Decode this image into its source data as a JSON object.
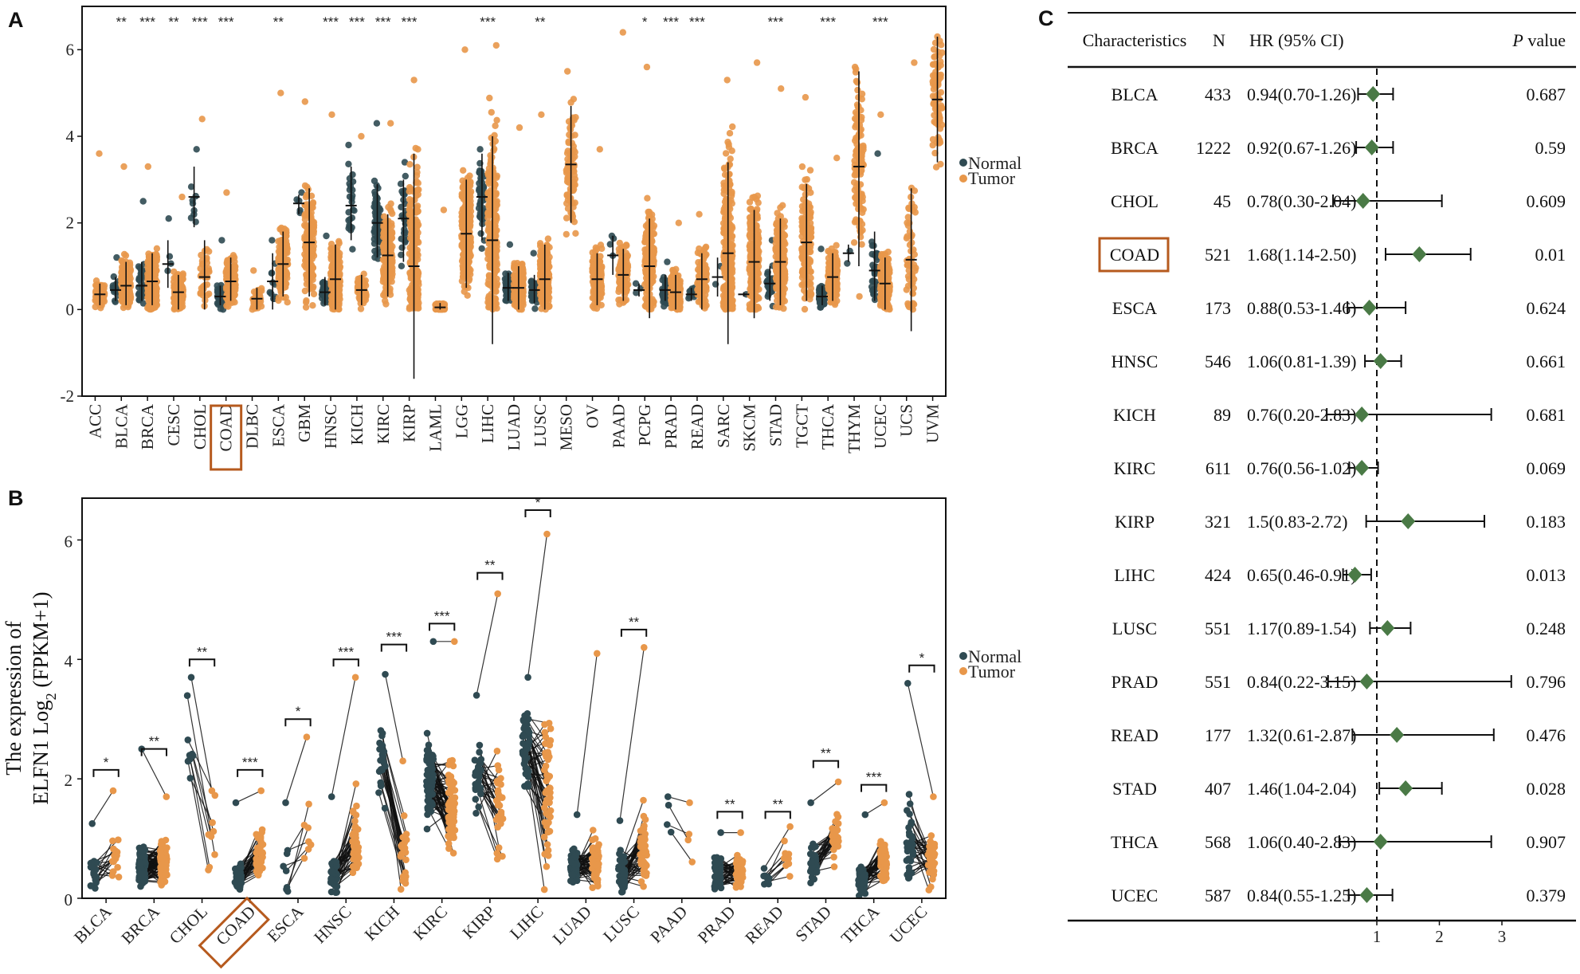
{
  "colors": {
    "normal": "#2f4a52",
    "tumor": "#e8974a",
    "highlight": "#b65a1e",
    "diamond": "#4a7a46",
    "frame": "#111111"
  },
  "chart_data": [
    {
      "panel": "A",
      "type": "scatter",
      "subtype": "strip-with-mean-sd",
      "ylim": [
        -2,
        7
      ],
      "yticks": [
        -2,
        0,
        2,
        4,
        6
      ],
      "legend": [
        "Normal",
        "Tumor"
      ],
      "legend_position": "right",
      "highlight_category": "COAD",
      "categories": [
        "ACC",
        "BLCA",
        "BRCA",
        "CESC",
        "CHOL",
        "COAD",
        "DLBC",
        "ESCA",
        "GBM",
        "HNSC",
        "KICH",
        "KIRC",
        "KIRP",
        "LAML",
        "LGG",
        "LIHC",
        "LUAD",
        "LUSC",
        "MESO",
        "OV",
        "PAAD",
        "PCPG",
        "PRAD",
        "READ",
        "SARC",
        "SKCM",
        "STAD",
        "TGCT",
        "THCA",
        "THYM",
        "UCEC",
        "UCS",
        "UVM"
      ],
      "significance": [
        "",
        "**",
        "***",
        "**",
        "***",
        "***",
        "",
        "**",
        "",
        "***",
        "***",
        "***",
        "***",
        "",
        "",
        "***",
        "",
        "**",
        "",
        "",
        "",
        "*",
        "***",
        "***",
        "",
        "",
        "***",
        "",
        "***",
        "",
        "***",
        "",
        ""
      ],
      "normal": [
        null,
        {
          "mean": 0.45,
          "sd_low": 0.2,
          "sd_high": 0.75,
          "n": 20,
          "max": 1.2
        },
        {
          "mean": 0.55,
          "sd_low": 0.2,
          "sd_high": 1.1,
          "n": 40,
          "max": 2.5
        },
        {
          "mean": 1.05,
          "sd_low": 0.5,
          "sd_high": 1.6,
          "n": 4,
          "max": 2.1
        },
        {
          "mean": 2.6,
          "sd_low": 1.9,
          "sd_high": 3.3,
          "n": 9,
          "max": 3.7
        },
        {
          "mean": 0.3,
          "sd_low": 0.1,
          "sd_high": 0.55,
          "n": 40,
          "max": 1.6
        },
        null,
        {
          "mean": 0.65,
          "sd_low": 0.0,
          "sd_high": 1.3,
          "n": 11,
          "max": 1.6
        },
        {
          "mean": 2.45,
          "sd_low": 2.2,
          "sd_high": 2.65,
          "n": 5,
          "max": 2.7
        },
        {
          "mean": 0.4,
          "sd_low": 0.1,
          "sd_high": 0.75,
          "n": 44,
          "max": 1.7
        },
        {
          "mean": 2.4,
          "sd_low": 1.6,
          "sd_high": 3.3,
          "n": 25,
          "max": 3.8
        },
        {
          "mean": 2.0,
          "sd_low": 1.2,
          "sd_high": 2.9,
          "n": 72,
          "max": 4.3
        },
        {
          "mean": 2.1,
          "sd_low": 1.1,
          "sd_high": 3.0,
          "n": 32,
          "max": 3.4
        },
        null,
        null,
        {
          "mean": 2.6,
          "sd_low": 1.6,
          "sd_high": 3.6,
          "n": 50,
          "max": 3.7
        },
        {
          "mean": 0.5,
          "sd_low": 0.2,
          "sd_high": 0.85,
          "n": 59,
          "max": 1.5
        },
        {
          "mean": 0.45,
          "sd_low": 0.15,
          "sd_high": 0.8,
          "n": 49,
          "max": 1.3
        },
        null,
        null,
        {
          "mean": 1.25,
          "sd_low": 0.8,
          "sd_high": 1.7,
          "n": 4,
          "max": 1.7
        },
        {
          "mean": 0.45,
          "sd_low": 0.3,
          "sd_high": 0.6,
          "n": 3,
          "max": 0.6
        },
        {
          "mean": 0.45,
          "sd_low": 0.2,
          "sd_high": 0.8,
          "n": 52,
          "max": 1.1
        },
        {
          "mean": 0.35,
          "sd_low": 0.2,
          "sd_high": 0.5,
          "n": 10,
          "max": 0.5
        },
        {
          "mean": 0.75,
          "sd_low": 0.3,
          "sd_high": 1.2,
          "n": 2,
          "max": 1.0
        },
        {
          "mean": 0.35,
          "sd_low": 0.3,
          "sd_high": 0.4,
          "n": 1,
          "max": 0.35
        },
        {
          "mean": 0.6,
          "sd_low": 0.2,
          "sd_high": 1.0,
          "n": 32,
          "max": 1.6
        },
        null,
        {
          "mean": 0.3,
          "sd_low": 0.1,
          "sd_high": 0.55,
          "n": 58,
          "max": 1.4
        },
        {
          "mean": 1.3,
          "sd_low": 1.1,
          "sd_high": 1.5,
          "n": 2,
          "max": 1.35
        },
        {
          "mean": 0.9,
          "sd_low": 0.2,
          "sd_high": 1.8,
          "n": 35,
          "max": 3.6
        },
        null,
        null
      ],
      "tumor": [
        {
          "mean": 0.35,
          "sd_low": 0.1,
          "sd_high": 0.6,
          "n": 79,
          "max": 3.6
        },
        {
          "mean": 0.55,
          "sd_low": 0.1,
          "sd_high": 1.1,
          "n": 200,
          "max": 3.3
        },
        {
          "mean": 0.65,
          "sd_low": 0.1,
          "sd_high": 1.3,
          "n": 250,
          "max": 3.3
        },
        {
          "mean": 0.4,
          "sd_low": 0.0,
          "sd_high": 0.8,
          "n": 150,
          "max": 2.6
        },
        {
          "mean": 0.75,
          "sd_low": 0.0,
          "sd_high": 1.6,
          "n": 36,
          "max": 4.4
        },
        {
          "mean": 0.65,
          "sd_low": 0.2,
          "sd_high": 1.2,
          "n": 150,
          "max": 2.7
        },
        {
          "mean": 0.25,
          "sd_low": 0.0,
          "sd_high": 0.5,
          "n": 48,
          "max": 0.9
        },
        {
          "mean": 1.05,
          "sd_low": 0.3,
          "sd_high": 1.8,
          "n": 150,
          "max": 5.0
        },
        {
          "mean": 1.55,
          "sd_low": 0.3,
          "sd_high": 2.8,
          "n": 160,
          "max": 4.8
        },
        {
          "mean": 0.7,
          "sd_low": 0.0,
          "sd_high": 1.5,
          "n": 200,
          "max": 4.5
        },
        {
          "mean": 0.45,
          "sd_low": 0.1,
          "sd_high": 0.8,
          "n": 65,
          "max": 4.0
        },
        {
          "mean": 1.25,
          "sd_low": 0.3,
          "sd_high": 2.2,
          "n": 200,
          "max": 4.3
        },
        {
          "mean": 1.0,
          "sd_low": -1.6,
          "sd_high": 3.6,
          "n": 220,
          "max": 5.3
        },
        {
          "mean": 0.05,
          "sd_low": 0.0,
          "sd_high": 0.15,
          "n": 150,
          "max": 2.3
        },
        {
          "mean": 1.75,
          "sd_low": 0.5,
          "sd_high": 3.0,
          "n": 250,
          "max": 6.0
        },
        {
          "mean": 1.6,
          "sd_low": -0.8,
          "sd_high": 4.0,
          "n": 250,
          "max": 6.1
        },
        {
          "mean": 0.5,
          "sd_low": 0.0,
          "sd_high": 1.0,
          "n": 220,
          "max": 4.2
        },
        {
          "mean": 0.7,
          "sd_low": 0.0,
          "sd_high": 1.5,
          "n": 220,
          "max": 4.5
        },
        {
          "mean": 3.35,
          "sd_low": 2.0,
          "sd_high": 4.7,
          "n": 87,
          "max": 5.5
        },
        {
          "mean": 0.7,
          "sd_low": 0.1,
          "sd_high": 1.3,
          "n": 200,
          "max": 3.7
        },
        {
          "mean": 0.8,
          "sd_low": 0.2,
          "sd_high": 1.4,
          "n": 120,
          "max": 6.4
        },
        {
          "mean": 1.0,
          "sd_low": -0.2,
          "sd_high": 2.1,
          "n": 180,
          "max": 5.6
        },
        {
          "mean": 0.4,
          "sd_low": 0.0,
          "sd_high": 0.8,
          "n": 250,
          "max": 2.0
        },
        {
          "mean": 0.7,
          "sd_low": 0.0,
          "sd_high": 1.3,
          "n": 120,
          "max": 2.2
        },
        {
          "mean": 1.3,
          "sd_low": -0.8,
          "sd_high": 3.4,
          "n": 250,
          "max": 5.3
        },
        {
          "mean": 1.1,
          "sd_low": -0.2,
          "sd_high": 2.3,
          "n": 250,
          "max": 5.7
        },
        {
          "mean": 1.1,
          "sd_low": 0.1,
          "sd_high": 2.1,
          "n": 220,
          "max": 5.1
        },
        {
          "mean": 1.55,
          "sd_low": 0.2,
          "sd_high": 2.9,
          "n": 150,
          "max": 4.9
        },
        {
          "mean": 0.75,
          "sd_low": 0.2,
          "sd_high": 1.3,
          "n": 250,
          "max": 3.5
        },
        {
          "mean": 3.3,
          "sd_low": 1.0,
          "sd_high": 5.5,
          "n": 120,
          "max": 5.6
        },
        {
          "mean": 0.6,
          "sd_low": 0.0,
          "sd_high": 1.2,
          "n": 200,
          "max": 4.5
        },
        {
          "mean": 1.15,
          "sd_low": -0.5,
          "sd_high": 2.8,
          "n": 57,
          "max": 5.7
        },
        {
          "mean": 4.85,
          "sd_low": 3.4,
          "sd_high": 6.3,
          "n": 80,
          "max": 6.3
        }
      ]
    },
    {
      "panel": "B",
      "type": "scatter",
      "subtype": "paired-lines",
      "ylabel_line1": "The expression of",
      "ylabel_line2": "ELFN1 Log",
      "ylabel_sub": "2",
      "ylabel_suffix": " (FPKM+1)",
      "ylim": [
        0,
        6.7
      ],
      "yticks": [
        0,
        2,
        4,
        6
      ],
      "legend": [
        "Normal",
        "Tumor"
      ],
      "legend_position": "right",
      "highlight_category": "COAD",
      "categories": [
        "BLCA",
        "BRCA",
        "CHOL",
        "COAD",
        "ESCA",
        "HNSC",
        "KICH",
        "KIRC",
        "KIRP",
        "LIHC",
        "LUAD",
        "LUSC",
        "PAAD",
        "PRAD",
        "READ",
        "STAD",
        "THCA",
        "UCEC"
      ],
      "significance": [
        "*",
        "**",
        "**",
        "***",
        "*",
        "***",
        "***",
        "***",
        "**",
        "*",
        "",
        "**",
        "",
        "**",
        "**",
        "**",
        "***",
        "*"
      ],
      "bracket_y": [
        2.15,
        2.5,
        4.0,
        2.15,
        3.0,
        4.0,
        4.25,
        4.6,
        5.45,
        6.5,
        null,
        4.5,
        null,
        1.45,
        1.45,
        2.3,
        1.9,
        3.9
      ],
      "pairs": [
        19,
        110,
        9,
        41,
        8,
        43,
        25,
        72,
        32,
        50,
        58,
        49,
        4,
        52,
        10,
        32,
        58,
        35
      ],
      "normal": [
        {
          "mean": 0.45,
          "sd": 0.25,
          "max": 1.25
        },
        {
          "mean": 0.55,
          "sd": 0.3,
          "max": 2.5
        },
        {
          "mean": 2.6,
          "sd": 0.6,
          "max": 3.7
        },
        {
          "mean": 0.35,
          "sd": 0.2,
          "max": 1.6
        },
        {
          "mean": 0.6,
          "sd": 0.5,
          "max": 1.6
        },
        {
          "mean": 0.4,
          "sd": 0.3,
          "max": 1.7
        },
        {
          "mean": 2.3,
          "sd": 0.7,
          "max": 3.75
        },
        {
          "mean": 2.0,
          "sd": 0.7,
          "max": 4.3
        },
        {
          "mean": 2.0,
          "sd": 0.7,
          "max": 3.4
        },
        {
          "mean": 2.5,
          "sd": 0.7,
          "max": 3.7
        },
        {
          "mean": 0.5,
          "sd": 0.3,
          "max": 1.4
        },
        {
          "mean": 0.45,
          "sd": 0.3,
          "max": 1.3
        },
        {
          "mean": 1.3,
          "sd": 0.4,
          "max": 1.7
        },
        {
          "mean": 0.45,
          "sd": 0.25,
          "max": 1.1
        },
        {
          "mean": 0.35,
          "sd": 0.1,
          "max": 0.5
        },
        {
          "mean": 0.6,
          "sd": 0.35,
          "max": 1.6
        },
        {
          "mean": 0.3,
          "sd": 0.2,
          "max": 1.4
        },
        {
          "mean": 0.9,
          "sd": 0.7,
          "max": 3.6
        }
      ],
      "tumor": [
        {
          "mean": 0.6,
          "sd": 0.35,
          "max": 1.8
        },
        {
          "mean": 0.6,
          "sd": 0.3,
          "max": 1.7
        },
        {
          "mean": 1.0,
          "sd": 0.6,
          "max": 1.8
        },
        {
          "mean": 0.7,
          "sd": 0.35,
          "max": 1.8
        },
        {
          "mean": 1.1,
          "sd": 0.6,
          "max": 2.7
        },
        {
          "mean": 0.9,
          "sd": 0.7,
          "max": 3.7
        },
        {
          "mean": 0.7,
          "sd": 0.6,
          "max": 2.3
        },
        {
          "mean": 1.6,
          "sd": 0.7,
          "max": 4.3
        },
        {
          "mean": 1.6,
          "sd": 0.9,
          "max": 5.1
        },
        {
          "mean": 1.7,
          "sd": 1.2,
          "max": 6.1
        },
        {
          "mean": 0.6,
          "sd": 0.4,
          "max": 4.1
        },
        {
          "mean": 0.8,
          "sd": 0.6,
          "max": 4.2
        },
        {
          "mean": 1.0,
          "sd": 0.4,
          "max": 1.6
        },
        {
          "mean": 0.45,
          "sd": 0.25,
          "max": 1.1
        },
        {
          "mean": 0.6,
          "sd": 0.3,
          "max": 1.2
        },
        {
          "mean": 1.1,
          "sd": 0.45,
          "max": 1.95
        },
        {
          "mean": 0.6,
          "sd": 0.35,
          "max": 1.6
        },
        {
          "mean": 0.6,
          "sd": 0.4,
          "max": 1.7
        }
      ]
    },
    {
      "panel": "C",
      "type": "table",
      "subtype": "forest-plot",
      "headers": {
        "char": "Characteristics",
        "n": "N",
        "hr": "HR (95% CI)",
        "p_italic": "P",
        "p_rest": "value"
      },
      "xlim": [
        0,
        3.6
      ],
      "xticks": [
        1,
        2,
        3
      ],
      "reference_line": 1,
      "highlight_category": "COAD",
      "rows": [
        {
          "name": "BLCA",
          "n": "433",
          "hr_text": "0.94(0.70-1.26)",
          "hr": 0.94,
          "lo": 0.7,
          "hi": 1.26,
          "p": "0.687"
        },
        {
          "name": "BRCA",
          "n": "1222",
          "hr_text": "0.92(0.67-1.26)",
          "hr": 0.92,
          "lo": 0.67,
          "hi": 1.26,
          "p": "0.59"
        },
        {
          "name": "CHOL",
          "n": "45",
          "hr_text": "0.78(0.30-2.04)",
          "hr": 0.78,
          "lo": 0.3,
          "hi": 2.04,
          "p": "0.609"
        },
        {
          "name": "COAD",
          "n": "521",
          "hr_text": "1.68(1.14-2.50)",
          "hr": 1.68,
          "lo": 1.14,
          "hi": 2.5,
          "p": "0.01"
        },
        {
          "name": "ESCA",
          "n": "173",
          "hr_text": "0.88(0.53-1.46)",
          "hr": 0.88,
          "lo": 0.53,
          "hi": 1.46,
          "p": "0.624"
        },
        {
          "name": "HNSC",
          "n": "546",
          "hr_text": "1.06(0.81-1.39)",
          "hr": 1.06,
          "lo": 0.81,
          "hi": 1.39,
          "p": "0.661"
        },
        {
          "name": "KICH",
          "n": "89",
          "hr_text": "0.76(0.20-2.83)",
          "hr": 0.76,
          "lo": 0.2,
          "hi": 2.83,
          "p": "0.681"
        },
        {
          "name": "KIRC",
          "n": "611",
          "hr_text": "0.76(0.56-1.02)",
          "hr": 0.76,
          "lo": 0.56,
          "hi": 1.02,
          "p": "0.069"
        },
        {
          "name": "KIRP",
          "n": "321",
          "hr_text": "1.5(0.83-2.72)",
          "hr": 1.5,
          "lo": 0.83,
          "hi": 2.72,
          "p": "0.183"
        },
        {
          "name": "LIHC",
          "n": "424",
          "hr_text": "0.65(0.46-0.91)",
          "hr": 0.65,
          "lo": 0.46,
          "hi": 0.91,
          "p": "0.013"
        },
        {
          "name": "LUSC",
          "n": "551",
          "hr_text": "1.17(0.89-1.54)",
          "hr": 1.17,
          "lo": 0.89,
          "hi": 1.54,
          "p": "0.248"
        },
        {
          "name": "PRAD",
          "n": "551",
          "hr_text": "0.84(0.22-3.15)",
          "hr": 0.84,
          "lo": 0.22,
          "hi": 3.15,
          "p": "0.796"
        },
        {
          "name": "READ",
          "n": "177",
          "hr_text": "1.32(0.61-2.87)",
          "hr": 1.32,
          "lo": 0.61,
          "hi": 2.87,
          "p": "0.476"
        },
        {
          "name": "STAD",
          "n": "407",
          "hr_text": "1.46(1.04-2.04)",
          "hr": 1.46,
          "lo": 1.04,
          "hi": 2.04,
          "p": "0.028"
        },
        {
          "name": "THCA",
          "n": "568",
          "hr_text": "1.06(0.40-2.83)",
          "hr": 1.06,
          "lo": 0.4,
          "hi": 2.83,
          "p": "0.907"
        },
        {
          "name": "UCEC",
          "n": "587",
          "hr_text": "0.84(0.55-1.25)",
          "hr": 0.84,
          "lo": 0.55,
          "hi": 1.25,
          "p": "0.379"
        }
      ]
    }
  ]
}
